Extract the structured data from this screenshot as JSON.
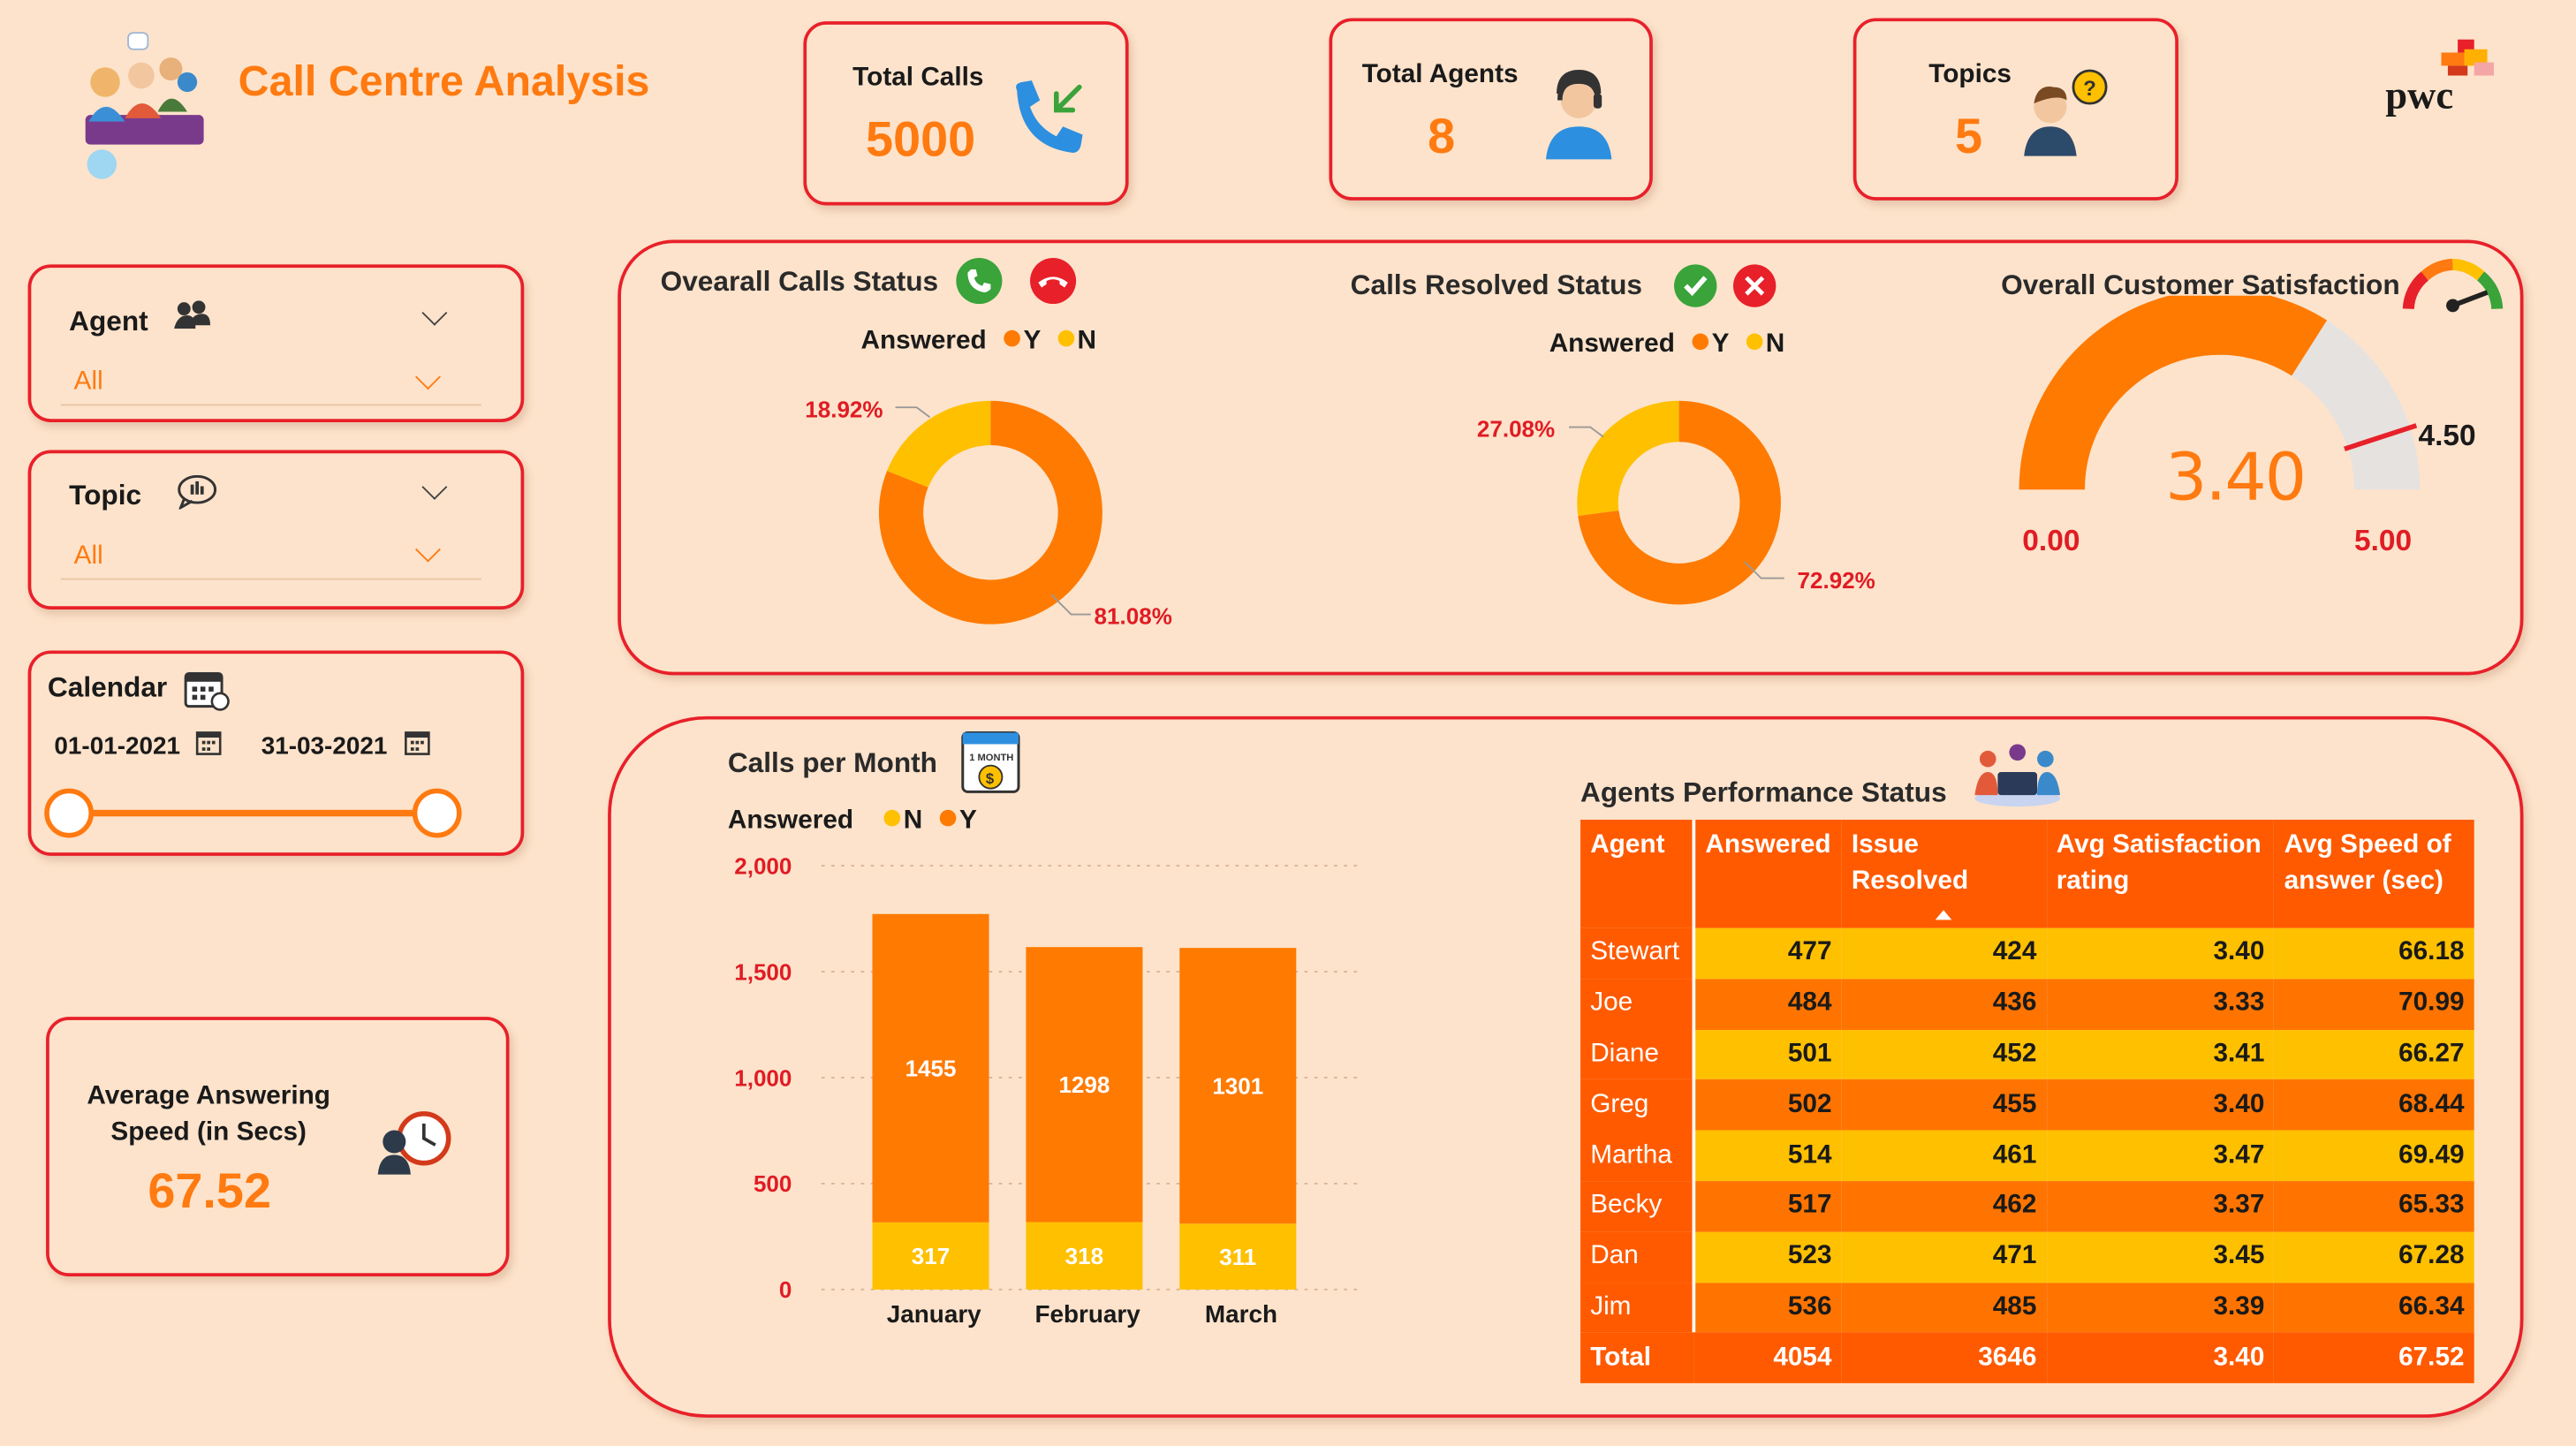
{
  "header": {
    "title": "Call Centre Analysis",
    "brand": "pwc"
  },
  "kpis": {
    "total_calls": {
      "label": "Total Calls",
      "value": "5000"
    },
    "total_agents": {
      "label": "Total Agents",
      "value": "8"
    },
    "topics": {
      "label": "Topics",
      "value": "5"
    }
  },
  "filters": {
    "agent": {
      "label": "Agent",
      "value": "All"
    },
    "topic": {
      "label": "Topic",
      "value": "All"
    },
    "calendar": {
      "label": "Calendar",
      "start": "01-01-2021",
      "end": "31-03-2021"
    }
  },
  "avg_answer": {
    "label_line1": "Average Answering",
    "label_line2": "Speed (in Secs)",
    "value": "67.52"
  },
  "colors": {
    "orange": "#ff7a00",
    "yellow": "#ffc000",
    "red": "#e8202a",
    "background": "#fde3cb"
  },
  "chart_data": [
    {
      "type": "pie",
      "title": "Ovearall Calls Status",
      "legend_title": "Answered",
      "legend": [
        "Y",
        "N"
      ],
      "slices": [
        {
          "label": "Y",
          "value": 81.08,
          "display": "81.08%"
        },
        {
          "label": "N",
          "value": 18.92,
          "display": "18.92%"
        }
      ]
    },
    {
      "type": "pie",
      "title": "Calls Resolved Status",
      "legend_title": "Answered",
      "legend": [
        "Y",
        "N"
      ],
      "slices": [
        {
          "label": "Y",
          "value": 72.92,
          "display": "72.92%"
        },
        {
          "label": "N",
          "value": 27.08,
          "display": "27.08%"
        }
      ]
    },
    {
      "type": "gauge",
      "title": "Overall Customer Satisfaction",
      "value": 3.4,
      "value_label": "3.40",
      "min": 0,
      "min_label": "0.00",
      "max": 5,
      "max_label": "5.00",
      "target": 4.5,
      "target_label": "4.50"
    },
    {
      "type": "bar",
      "stacked": true,
      "title": "Calls per Month",
      "legend_title": "Answered",
      "legend": [
        "N",
        "Y"
      ],
      "categories": [
        "January",
        "February",
        "March"
      ],
      "series": [
        {
          "name": "N",
          "values": [
            317,
            318,
            311
          ]
        },
        {
          "name": "Y",
          "values": [
            1455,
            1298,
            1301
          ]
        }
      ],
      "ylim": [
        0,
        2000
      ],
      "yticks": [
        0,
        500,
        1000,
        1500,
        2000
      ],
      "ytick_labels": [
        "0",
        "500",
        "1,000",
        "1,500",
        "2,000"
      ],
      "grid": true
    },
    {
      "type": "table",
      "title": "Agents Performance Status",
      "columns": [
        "Agent",
        "Answered",
        "Issue Resolved",
        "Avg Satisfaction rating",
        "Avg Speed of answer (sec)"
      ],
      "rows": [
        [
          "Stewart",
          "477",
          "424",
          "3.40",
          "66.18"
        ],
        [
          "Joe",
          "484",
          "436",
          "3.33",
          "70.99"
        ],
        [
          "Diane",
          "501",
          "452",
          "3.41",
          "66.27"
        ],
        [
          "Greg",
          "502",
          "455",
          "3.40",
          "68.44"
        ],
        [
          "Martha",
          "514",
          "461",
          "3.47",
          "69.49"
        ],
        [
          "Becky",
          "517",
          "462",
          "3.37",
          "65.33"
        ],
        [
          "Dan",
          "523",
          "471",
          "3.45",
          "67.28"
        ],
        [
          "Jim",
          "536",
          "485",
          "3.39",
          "66.34"
        ]
      ],
      "total": [
        "Total",
        "4054",
        "3646",
        "3.40",
        "67.52"
      ]
    }
  ]
}
